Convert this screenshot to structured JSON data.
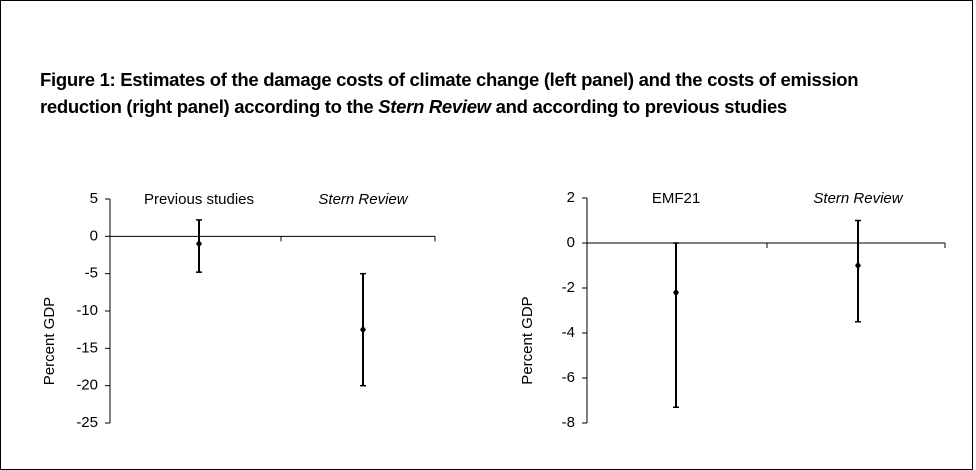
{
  "title": [
    "Figure 1: Estimates of the damage costs of climate change (left panel) and the costs of emission reduction (right panel) according to the ",
    "Stern Review",
    " and according to previous studies"
  ],
  "chart_data": [
    {
      "type": "errorbar",
      "ylabel": "Percent GDP",
      "categories": [
        "Previous studies",
        "Stern Review"
      ],
      "category_italic": [
        false,
        true
      ],
      "values": [
        -1,
        -12.5
      ],
      "low": [
        -4.8,
        -20
      ],
      "high": [
        2.2,
        -5
      ],
      "color": "#000000",
      "ylim": [
        -25,
        5
      ],
      "yticks": [
        -25,
        -20,
        -15,
        -10,
        -5,
        0,
        5
      ]
    },
    {
      "type": "errorbar",
      "ylabel": "Percent GDP",
      "categories": [
        "EMF21",
        "Stern Review"
      ],
      "category_italic": [
        false,
        true
      ],
      "values": [
        -2.2,
        -1
      ],
      "low": [
        -7.3,
        -3.5
      ],
      "high": [
        0,
        1
      ],
      "color": "#000000",
      "ylim": [
        -8,
        2
      ],
      "yticks": [
        -8,
        -6,
        -4,
        -2,
        0,
        2
      ]
    }
  ]
}
